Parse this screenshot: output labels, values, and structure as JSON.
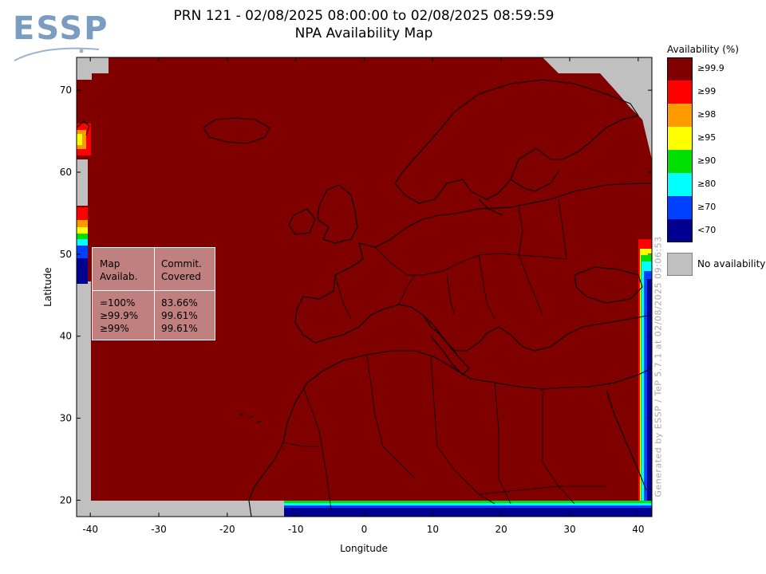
{
  "logo": {
    "text": "ESSP"
  },
  "header": {
    "title_line1": "PRN 121 - 02/08/2025 08:00:00 to 02/08/2025 08:59:59",
    "title_line2": "NPA Availability Map"
  },
  "axes": {
    "xlabel": "Longitude",
    "ylabel": "Latitude",
    "xticks": [
      "-40",
      "-30",
      "-20",
      "-10",
      "0",
      "10",
      "20",
      "30",
      "40"
    ],
    "yticks": [
      "20",
      "30",
      "40",
      "50",
      "60",
      "70"
    ]
  },
  "legend": {
    "title": "Availability (%)",
    "items": [
      {
        "label": "≥99.9",
        "color": "#800000"
      },
      {
        "label": "≥99",
        "color": "#ff0000"
      },
      {
        "label": "≥98",
        "color": "#ff9900"
      },
      {
        "label": "≥95",
        "color": "#ffff00"
      },
      {
        "label": "≥90",
        "color": "#00e000"
      },
      {
        "label": "≥80",
        "color": "#00ffff"
      },
      {
        "label": "≥70",
        "color": "#0040ff"
      },
      {
        "label": "<70",
        "color": "#000090"
      }
    ],
    "no_availability": "No availability"
  },
  "stats_box": {
    "col1_header": "Map\nAvailab.",
    "col2_header": "Commit.\nCovered",
    "col1_values": "=100%\n≥99.9%\n≥99%",
    "col2_values": "83.66%\n99.61%\n99.61%"
  },
  "footer": {
    "generated": "Generated by ESSP / TeP 5.7.1 at 02/08/2025 09:06:53"
  },
  "chart_data": {
    "type": "heatmap",
    "title": "NPA Availability Map",
    "xlabel": "Longitude",
    "ylabel": "Latitude",
    "xlim": [
      -42,
      42
    ],
    "ylim": [
      18,
      74
    ],
    "dominant_class": "≥99.9"
  }
}
